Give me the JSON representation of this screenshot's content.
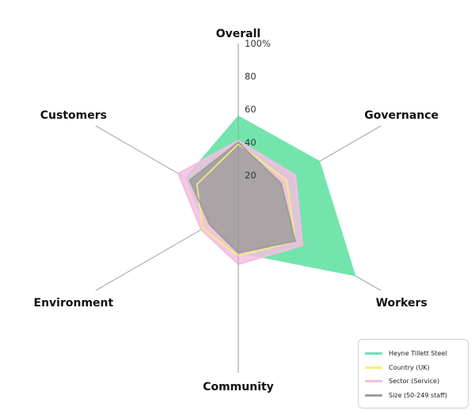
{
  "chart_data": {
    "type": "radar",
    "axes": [
      "Overall",
      "Governance",
      "Workers",
      "Community",
      "Environment",
      "Customers"
    ],
    "ticks": [
      "20",
      "40",
      "60",
      "80",
      "100%"
    ],
    "range": [
      0,
      100
    ],
    "grid": true,
    "legend_position": "bottom-right",
    "series": [
      {
        "name": "Heyne Tillett Steel",
        "color": "#6de3a9",
        "values": [
          56,
          57,
          82,
          27,
          23,
          37
        ]
      },
      {
        "name": "Country (UK)",
        "color": "#f4ef7c",
        "values": [
          39,
          34,
          40,
          29,
          25,
          29
        ]
      },
      {
        "name": "Sector (Service)",
        "color": "#f2bfe0",
        "values": [
          41,
          40,
          45,
          34,
          26,
          42
        ]
      },
      {
        "name": "Size (50-249 staff)",
        "color": "#9e9e9e",
        "values": [
          40,
          30,
          40,
          27,
          20,
          34
        ]
      }
    ]
  }
}
